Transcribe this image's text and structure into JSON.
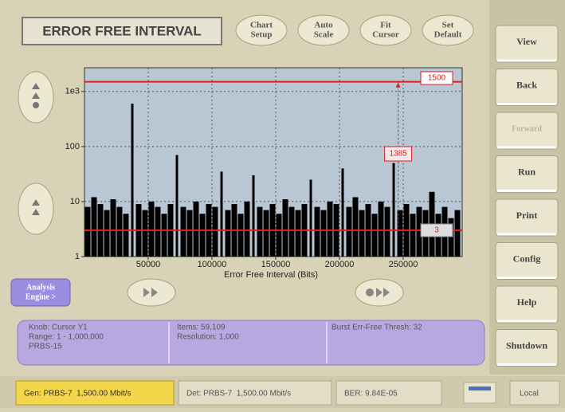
{
  "ui": {
    "title": "ERROR FREE INTERVAL",
    "top_buttons": [
      [
        "Chart",
        "Setup"
      ],
      [
        "Auto",
        "Scale"
      ],
      [
        "Fit",
        "Cursor"
      ],
      [
        "Set",
        "Default"
      ]
    ],
    "side_buttons": [
      "View",
      "Back",
      "Forward",
      "Run",
      "Print",
      "Config",
      "Help",
      "Shutdown"
    ],
    "analysis_button": [
      "Analysis",
      "Engine >"
    ],
    "info": [
      [
        "Knob: Cursor Y1",
        "Range: 1 - 1,000,000",
        "PRBS-15"
      ],
      [
        "Items: 59,109",
        "Resolution: 1,000"
      ],
      [
        "Burst Err-Free Thresh: 32"
      ]
    ],
    "status": [
      "Gen: PRBS-7  1,500.00 Mbit/s",
      "Det: PRBS-7  1,500.00 Mbit/s",
      "BER: 9.84E-05",
      "Local"
    ]
  },
  "chart_data": {
    "type": "bar",
    "x_label": "Error Free Interval (Bits)",
    "x": [
      2500,
      7500,
      12500,
      17500,
      22500,
      27500,
      32500,
      37500,
      42500,
      47500,
      52500,
      57500,
      62500,
      67500,
      72500,
      77500,
      82500,
      87500,
      92500,
      97500,
      102500,
      107500,
      112500,
      117500,
      122500,
      127500,
      132500,
      137500,
      142500,
      147500,
      152500,
      157500,
      162500,
      167500,
      172500,
      177500,
      182500,
      187500,
      192500,
      197500,
      202500,
      207500,
      212500,
      217500,
      222500,
      227500,
      232500,
      237500,
      242500,
      247500,
      252500,
      257500,
      262500,
      267500,
      272500,
      277500,
      282500,
      287500,
      292500
    ],
    "values": [
      8,
      12,
      9,
      7,
      11,
      8,
      6,
      600,
      9,
      7,
      10,
      8,
      6,
      9,
      70,
      8,
      7,
      10,
      6,
      9,
      8,
      35,
      7,
      9,
      6,
      10,
      30,
      8,
      7,
      9,
      6,
      11,
      8,
      7,
      9,
      25,
      8,
      7,
      10,
      9,
      40,
      8,
      12,
      7,
      9,
      6,
      10,
      8,
      50,
      7,
      9,
      6,
      8,
      7,
      15,
      6,
      8,
      5,
      7
    ],
    "color": "#000000",
    "xlim": [
      0,
      295000
    ],
    "xticks": [
      50000,
      100000,
      150000,
      200000,
      250000
    ],
    "ylim": [
      1,
      2700
    ],
    "yticks": [
      {
        "value": 1000,
        "label": "1e3"
      },
      100,
      10,
      1
    ],
    "log_y": true,
    "grid": true,
    "cursor_color": "#e02020",
    "cursors": {
      "y1": {
        "value": 1500,
        "label": "1500"
      },
      "y2": {
        "value": 3,
        "label": "3"
      },
      "x": 246000,
      "readout": "1385"
    }
  }
}
